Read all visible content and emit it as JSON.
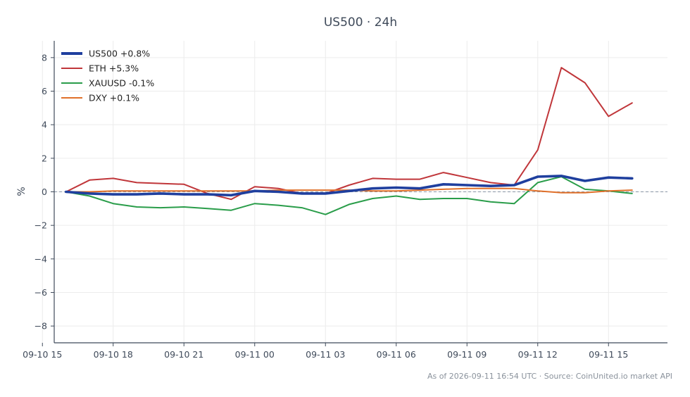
{
  "chart_data": {
    "type": "line",
    "title": "US500 · 24h",
    "ylabel": "%",
    "xlabel": "",
    "ylim": [
      -9,
      9
    ],
    "yticks": [
      -8,
      -6,
      -4,
      -2,
      0,
      2,
      4,
      6,
      8
    ],
    "xlim": [
      "09-10 15:30",
      "09-11 17:30"
    ],
    "xticks": [
      "09-10 15",
      "09-10 18",
      "09-10 21",
      "09-11 00",
      "09-11 03",
      "09-11 06",
      "09-11 09",
      "09-11 12",
      "09-11 15"
    ],
    "x": [
      "09-10 16:00",
      "09-10 17:00",
      "09-10 18:00",
      "09-10 19:00",
      "09-10 20:00",
      "09-10 21:00",
      "09-10 22:00",
      "09-10 23:00",
      "09-11 00:00",
      "09-11 01:00",
      "09-11 02:00",
      "09-11 03:00",
      "09-11 04:00",
      "09-11 05:00",
      "09-11 06:00",
      "09-11 07:00",
      "09-11 08:00",
      "09-11 09:00",
      "09-11 10:00",
      "09-11 11:00",
      "09-11 12:00",
      "09-11 13:00",
      "09-11 14:00",
      "09-11 15:00",
      "09-11 16:00"
    ],
    "grid": true,
    "zero_line": true,
    "legend_position": "top-left",
    "series": [
      {
        "name": "US500 +0.8%",
        "color": "#1f3f9e",
        "emphasis": true,
        "values": [
          0.0,
          -0.1,
          -0.15,
          -0.15,
          -0.1,
          -0.15,
          -0.15,
          -0.2,
          0.05,
          0.0,
          -0.1,
          -0.1,
          0.05,
          0.2,
          0.25,
          0.2,
          0.45,
          0.4,
          0.35,
          0.4,
          0.9,
          0.95,
          0.65,
          0.85,
          0.8
        ]
      },
      {
        "name": "ETH +5.3%",
        "color": "#c0363a",
        "values": [
          0.0,
          0.7,
          0.8,
          0.55,
          0.5,
          0.45,
          -0.1,
          -0.45,
          0.3,
          0.2,
          -0.1,
          -0.1,
          0.4,
          0.8,
          0.75,
          0.75,
          1.15,
          0.85,
          0.55,
          0.4,
          2.5,
          7.4,
          6.5,
          4.5,
          5.3
        ]
      },
      {
        "name": "XAUUSD -0.1%",
        "color": "#2a9d4a",
        "values": [
          0.0,
          -0.25,
          -0.7,
          -0.9,
          -0.95,
          -0.9,
          -1.0,
          -1.1,
          -0.7,
          -0.8,
          -0.95,
          -1.35,
          -0.75,
          -0.4,
          -0.25,
          -0.45,
          -0.4,
          -0.4,
          -0.6,
          -0.7,
          0.55,
          0.9,
          0.15,
          0.05,
          -0.1
        ]
      },
      {
        "name": "DXY +0.1%",
        "color": "#e0702a",
        "values": [
          0.0,
          0.0,
          0.05,
          0.05,
          0.05,
          0.05,
          0.05,
          0.05,
          0.05,
          0.1,
          0.1,
          0.1,
          0.1,
          0.05,
          0.05,
          0.1,
          0.15,
          0.2,
          0.2,
          0.2,
          0.05,
          -0.05,
          -0.05,
          0.05,
          0.1
        ]
      }
    ],
    "footer": "As of 2026-09-11 16:54 UTC · Source: CoinUnited.io market API"
  }
}
